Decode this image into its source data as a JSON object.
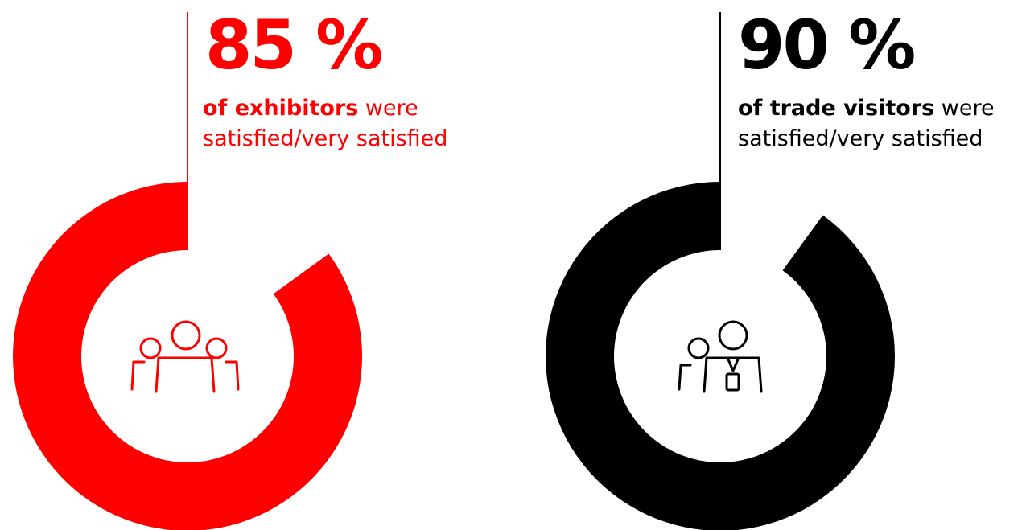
{
  "chart_data": [
    {
      "type": "pie",
      "style": "donut",
      "value": 85,
      "unit": "%",
      "label_value": "85 %",
      "label_bold": "of exhibitors",
      "label_rest": "were",
      "label_line2": "satisfied/very satisfied",
      "color": "#ff0000",
      "icon": "group-of-people-icon"
    },
    {
      "type": "pie",
      "style": "donut",
      "value": 90,
      "unit": "%",
      "label_value": "90 %",
      "label_bold": "of trade visitors",
      "label_rest": "were",
      "label_line2": "satisfied/very satisfied",
      "color": "#000000",
      "icon": "visitor-with-badge-icon"
    }
  ]
}
